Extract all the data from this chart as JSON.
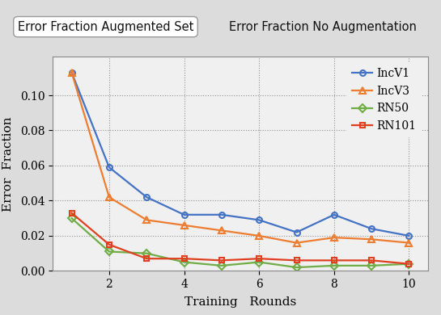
{
  "title_augmented": "Error Fraction Augmented Set",
  "title_no_aug": "Error Fraction No Augmentation",
  "xlabel": "Training   Rounds",
  "ylabel": "Error  Fraction",
  "x": [
    1,
    2,
    3,
    4,
    5,
    6,
    7,
    8,
    9,
    10
  ],
  "IncV1": [
    0.113,
    0.059,
    0.042,
    0.032,
    0.032,
    0.029,
    0.022,
    0.032,
    0.024,
    0.02
  ],
  "IncV3": [
    0.113,
    0.042,
    0.029,
    0.026,
    0.023,
    0.02,
    0.016,
    0.019,
    0.018,
    0.016
  ],
  "RN50": [
    0.03,
    0.011,
    0.01,
    0.005,
    0.003,
    0.005,
    0.002,
    0.003,
    0.003,
    0.004
  ],
  "RN101": [
    0.033,
    0.015,
    0.007,
    0.007,
    0.006,
    0.007,
    0.006,
    0.006,
    0.006,
    0.004
  ],
  "color_IncV1": "#4472C4",
  "color_IncV3": "#ED7D31",
  "color_RN50": "#70AD47",
  "color_RN101": "#E04020",
  "ylim": [
    0.0,
    0.122
  ],
  "yticks": [
    0.0,
    0.02,
    0.04,
    0.06,
    0.08,
    0.1
  ],
  "xticks": [
    2,
    4,
    6,
    8,
    10
  ],
  "plot_bg": "#F0F0F0",
  "fig_bg": "#DCDCDC",
  "legend_fontsize": 10,
  "axis_label_fontsize": 11,
  "tick_fontsize": 10,
  "title_fontsize": 10.5
}
